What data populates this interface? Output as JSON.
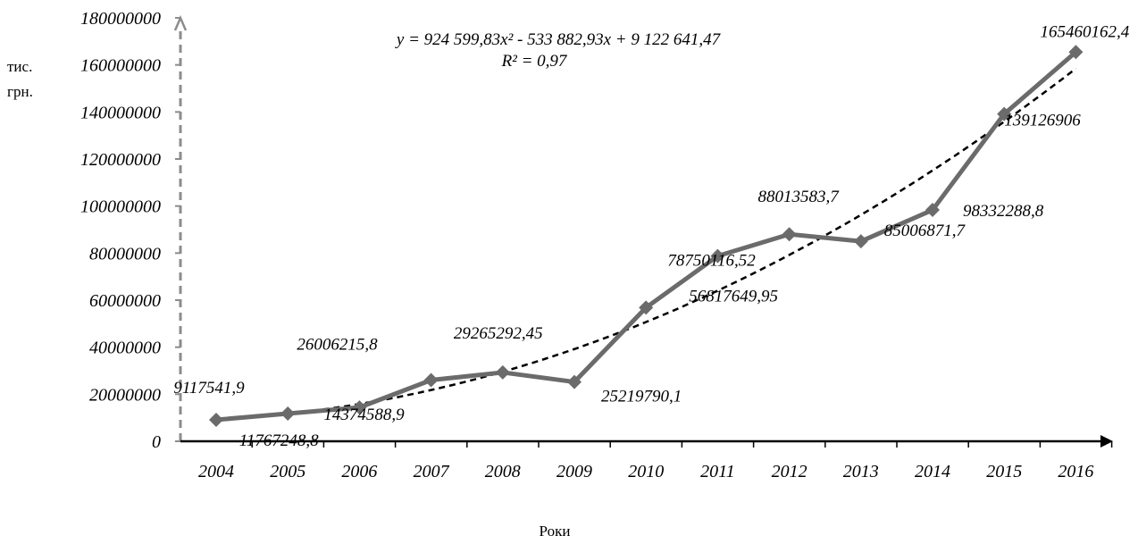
{
  "chart_data": {
    "type": "line",
    "categories": [
      "2004",
      "2005",
      "2006",
      "2007",
      "2008",
      "2009",
      "2010",
      "2011",
      "2012",
      "2013",
      "2014",
      "2015",
      "2016"
    ],
    "series": [
      {
        "values": [
          9117541.9,
          11767248.8,
          14374588.9,
          26006215.8,
          29265292.45,
          25219790.1,
          56817649.95,
          78750116.52,
          88013583.7,
          85006871.7,
          98332288.8,
          139126906,
          165460162.4
        ],
        "labels": [
          "9117541,9",
          "11767248,8",
          "14374588,9",
          "26006215,8",
          "29265292,45",
          "25219790,1",
          "56817649,95",
          "78750116,52",
          "88013583,7",
          "85006871,7",
          "98332288,8",
          "139126906",
          "165460162,4"
        ],
        "color": "#6b6b6b",
        "marker": "diamond"
      }
    ],
    "trendline": {
      "type": "polynomial",
      "order": 2,
      "style": "dashed",
      "color": "#000000",
      "coefficients": [
        924599.83,
        -533882.93,
        9122641.47
      ],
      "equation": "y = 924 599,83x² - 533 882,93x + 9 122 641,47",
      "r2": "R² = 0,97"
    },
    "yticks": [
      0,
      20000000,
      40000000,
      60000000,
      80000000,
      100000000,
      120000000,
      140000000,
      160000000,
      180000000
    ],
    "ylim": [
      0,
      180000000
    ],
    "ylabel_line1": "тис.",
    "ylabel_line2": "грн.",
    "xlabel": "Роки",
    "grid": false
  }
}
